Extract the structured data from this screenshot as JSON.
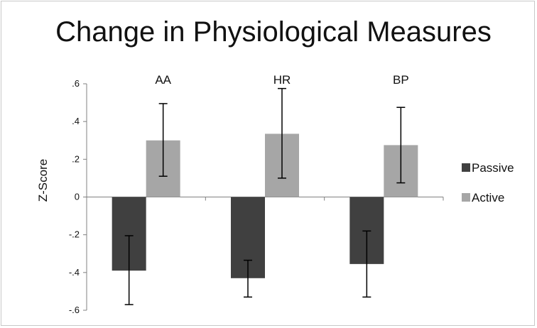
{
  "chart_data": {
    "type": "bar",
    "title": "Change in Physiological Measures",
    "xlabel": "",
    "ylabel": "Z-Score",
    "categories": [
      "AA",
      "HR",
      "BP"
    ],
    "ylim": [
      -0.6,
      0.6
    ],
    "yticks": [
      0.6,
      0.4,
      0.2,
      0,
      -0.2,
      -0.4,
      -0.6
    ],
    "ytick_labels": [
      ".6",
      ".4",
      ".2",
      "0",
      "-.2",
      "-.4",
      "-.6"
    ],
    "grid": false,
    "legend_position": "right",
    "series": [
      {
        "name": "Passive",
        "color": "#404040",
        "values": [
          -0.39,
          -0.43,
          -0.355
        ],
        "err_low": [
          -0.57,
          -0.53,
          -0.53
        ],
        "err_high": [
          -0.205,
          -0.335,
          -0.18
        ]
      },
      {
        "name": "Active",
        "color": "#a6a6a6",
        "values": [
          0.3,
          0.335,
          0.275
        ],
        "err_low": [
          0.11,
          0.1,
          0.075
        ],
        "err_high": [
          0.495,
          0.575,
          0.475
        ]
      }
    ]
  }
}
